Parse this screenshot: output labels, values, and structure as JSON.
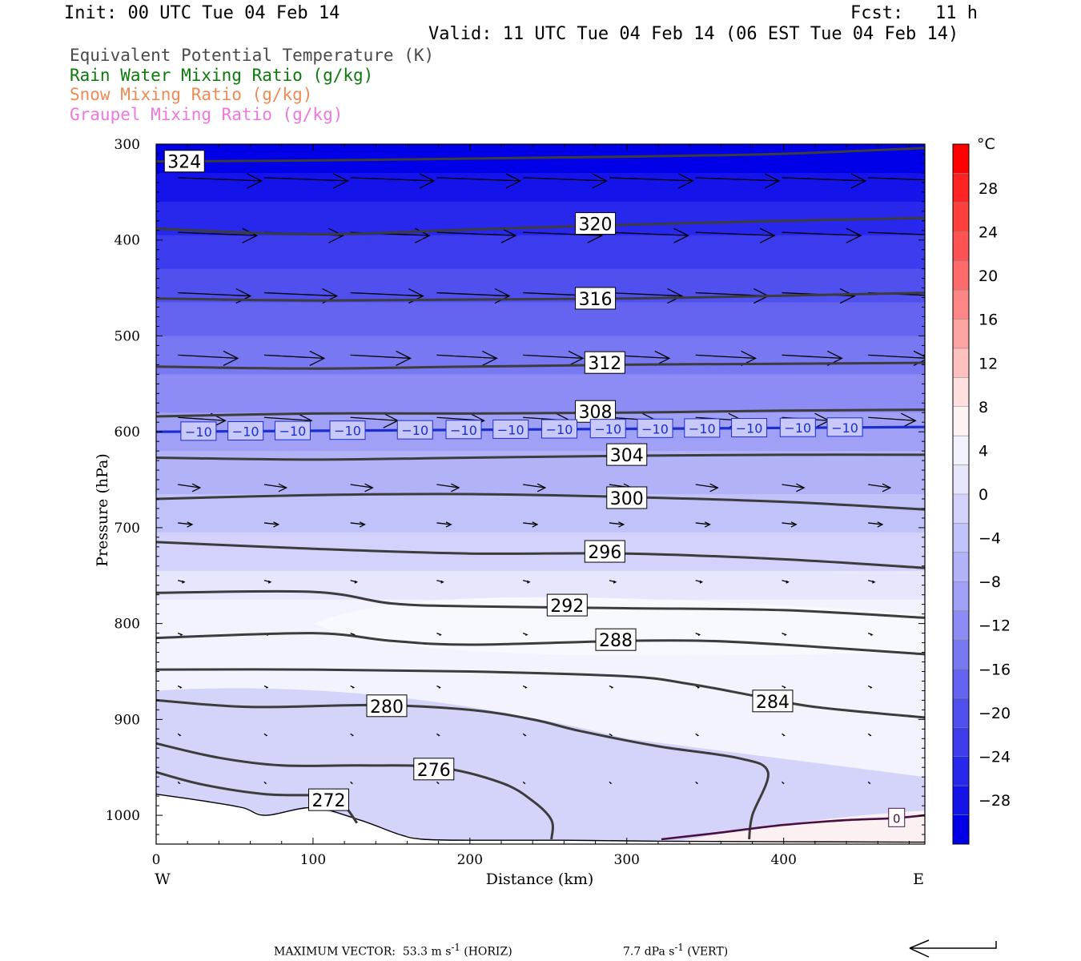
{
  "header": {
    "init": "Init: 00 UTC Tue 04 Feb 14",
    "fcst": "Fcst:   11 h",
    "valid": "Valid: 11 UTC Tue 04 Feb 14 (06 EST Tue 04 Feb 14)"
  },
  "legend": [
    {
      "text": "Equivalent Potential Temperature (K)",
      "color": "#4a4a4a"
    },
    {
      "text": "Rain Water Mixing Ratio (g/kg)",
      "color": "#0b7a0b"
    },
    {
      "text": "Snow Mixing Ratio (g/kg)",
      "color": "#ee8a55"
    },
    {
      "text": "Graupel Mixing Ratio (g/kg)",
      "color": "#ee77dd"
    }
  ],
  "chart_data": {
    "type": "contour",
    "xlabel": "Distance (km)",
    "ylabel": "Pressure (hPa)",
    "xlim": [
      0,
      490
    ],
    "ylim": [
      1030,
      300
    ],
    "x_ticks": [
      0,
      100,
      200,
      300,
      400
    ],
    "y_ticks": [
      300,
      400,
      500,
      600,
      700,
      800,
      900,
      1000
    ],
    "x_end_labels": {
      "left": "W",
      "right": "E"
    },
    "theta_e_contours": [
      {
        "label": "324",
        "pts": [
          [
            0,
            318
          ],
          [
            100,
            317
          ],
          [
            200,
            315
          ],
          [
            300,
            313
          ],
          [
            400,
            310
          ],
          [
            490,
            304
          ]
        ],
        "label_at": [
          18,
          319
        ]
      },
      {
        "label": "320",
        "pts": [
          [
            0,
            388
          ],
          [
            100,
            394
          ],
          [
            200,
            389
          ],
          [
            300,
            384
          ],
          [
            400,
            380
          ],
          [
            490,
            377
          ]
        ],
        "label_at": [
          280,
          384
        ]
      },
      {
        "label": "316",
        "pts": [
          [
            0,
            461
          ],
          [
            100,
            463
          ],
          [
            200,
            462
          ],
          [
            300,
            461
          ],
          [
            400,
            458
          ],
          [
            490,
            455
          ]
        ],
        "label_at": [
          280,
          462
        ]
      },
      {
        "label": "312",
        "pts": [
          [
            0,
            532
          ],
          [
            100,
            534
          ],
          [
            200,
            532
          ],
          [
            300,
            530
          ],
          [
            400,
            529
          ],
          [
            490,
            528
          ]
        ],
        "label_at": [
          286,
          529
        ]
      },
      {
        "label": "308",
        "pts": [
          [
            0,
            584
          ],
          [
            100,
            581
          ],
          [
            200,
            581
          ],
          [
            300,
            580
          ],
          [
            400,
            578
          ],
          [
            490,
            577
          ]
        ],
        "label_at": [
          280,
          580
        ]
      },
      {
        "label": "304",
        "pts": [
          [
            0,
            627
          ],
          [
            100,
            629
          ],
          [
            200,
            627
          ],
          [
            300,
            625
          ],
          [
            400,
            624
          ],
          [
            490,
            624
          ]
        ],
        "label_at": [
          300,
          625
        ]
      },
      {
        "label": "300",
        "pts": [
          [
            0,
            670
          ],
          [
            100,
            666
          ],
          [
            200,
            665
          ],
          [
            300,
            668
          ],
          [
            400,
            673
          ],
          [
            490,
            681
          ]
        ],
        "label_at": [
          300,
          670
        ]
      },
      {
        "label": "296",
        "pts": [
          [
            0,
            715
          ],
          [
            100,
            722
          ],
          [
            200,
            727
          ],
          [
            300,
            727
          ],
          [
            400,
            733
          ],
          [
            490,
            742
          ]
        ],
        "label_at": [
          286,
          726
        ]
      },
      {
        "label": "292",
        "pts": [
          [
            0,
            768
          ],
          [
            100,
            767
          ],
          [
            150,
            779
          ],
          [
            200,
            782
          ],
          [
            300,
            784
          ],
          [
            400,
            786
          ],
          [
            490,
            794
          ]
        ],
        "label_at": [
          262,
          782
        ]
      },
      {
        "label": "288",
        "pts": [
          [
            0,
            815
          ],
          [
            100,
            810
          ],
          [
            150,
            818
          ],
          [
            200,
            822
          ],
          [
            300,
            818
          ],
          [
            350,
            818
          ],
          [
            400,
            822
          ],
          [
            490,
            832
          ]
        ],
        "label_at": [
          293,
          818
        ]
      },
      {
        "label": "284",
        "pts": [
          [
            0,
            848
          ],
          [
            100,
            848
          ],
          [
            200,
            850
          ],
          [
            300,
            855
          ],
          [
            340,
            863
          ],
          [
            380,
            875
          ],
          [
            420,
            887
          ],
          [
            490,
            898
          ]
        ],
        "label_at": [
          393,
          882
        ]
      },
      {
        "label": "280",
        "pts": [
          [
            0,
            880
          ],
          [
            60,
            887
          ],
          [
            140,
            885
          ],
          [
            200,
            890
          ],
          [
            240,
            900
          ],
          [
            270,
            912
          ],
          [
            320,
            928
          ],
          [
            370,
            940
          ],
          [
            390,
            955
          ],
          [
            380,
            1000
          ],
          [
            378,
            1025
          ]
        ],
        "label_at": [
          147,
          887
        ]
      },
      {
        "label": "276",
        "pts": [
          [
            0,
            925
          ],
          [
            40,
            940
          ],
          [
            80,
            948
          ],
          [
            130,
            948
          ],
          [
            180,
            950
          ],
          [
            220,
            966
          ],
          [
            240,
            985
          ],
          [
            252,
            1005
          ],
          [
            252,
            1025
          ]
        ],
        "label_at": [
          177,
          953
        ]
      },
      {
        "label": "272",
        "pts": [
          [
            0,
            955
          ],
          [
            30,
            968
          ],
          [
            70,
            978
          ],
          [
            110,
            980
          ],
          [
            120,
            990
          ],
          [
            128,
            1008
          ]
        ],
        "label_at": [
          110,
          985
        ]
      }
    ],
    "temperature_contours": [
      {
        "label": "-10",
        "color": "#1b2ecf",
        "pts": [
          [
            0,
            600
          ],
          [
            490,
            595
          ]
        ],
        "labels_x": [
          27,
          57,
          87,
          122,
          165,
          196,
          226,
          257,
          288,
          318,
          348,
          378,
          409,
          439
        ]
      },
      {
        "label": "0",
        "color": "#4a1040",
        "pts": [
          [
            322,
            1025
          ],
          [
            360,
            1018
          ],
          [
            400,
            1010
          ],
          [
            440,
            1005
          ],
          [
            470,
            1003
          ],
          [
            490,
            1000
          ]
        ],
        "labels_x": [
          472
        ]
      }
    ],
    "terrain": [
      [
        0,
        978
      ],
      [
        30,
        985
      ],
      [
        55,
        992
      ],
      [
        70,
        1000
      ],
      [
        100,
        992
      ],
      [
        130,
        1005
      ],
      [
        155,
        1020
      ],
      [
        170,
        1025
      ],
      [
        200,
        1026
      ],
      [
        260,
        1026
      ],
      [
        322,
        1027
      ],
      [
        490,
        1028
      ]
    ],
    "colorbar": {
      "unit": "°C",
      "labels": [
        28,
        24,
        20,
        16,
        12,
        8,
        4,
        0,
        -4,
        -8,
        -12,
        -16,
        -20,
        -24,
        -28
      ],
      "colors": [
        "#ff0000",
        "#ff2424",
        "#ff3e3e",
        "#ff5353",
        "#ff6a6a",
        "#ff8686",
        "#ffa2a2",
        "#ffc0c0",
        "#ffe0e0",
        "#fdf3f3",
        "#f3f3fe",
        "#e6e6fd",
        "#d2d2fc",
        "#c2c2fa",
        "#b2b2f8",
        "#a0a0f6",
        "#8c8cf4",
        "#7878f2",
        "#6464f0",
        "#5050ef",
        "#3c3ced",
        "#2828ea",
        "#1414e8",
        "#0000e6"
      ]
    },
    "temperature_bands_y": [
      [
        300,
        "#0000e8"
      ],
      [
        330,
        "#1414ea"
      ],
      [
        360,
        "#2828ec"
      ],
      [
        395,
        "#3c3cee"
      ],
      [
        430,
        "#5050ef"
      ],
      [
        465,
        "#6464f0"
      ],
      [
        500,
        "#7878f2"
      ],
      [
        540,
        "#8c8cf4"
      ],
      [
        580,
        "#a0a0f6"
      ],
      [
        620,
        "#b2b2f8"
      ],
      [
        665,
        "#c2c2fa"
      ],
      [
        705,
        "#d2d2fc"
      ],
      [
        745,
        "#e6e6fd"
      ],
      [
        775,
        "#f3f3fe"
      ]
    ],
    "wind_vectors_row_levels": [
      335,
      392,
      455,
      520,
      585,
      655,
      695,
      755,
      810,
      865,
      915,
      965
    ],
    "wind_vectors_cols_km": [
      20,
      75,
      130,
      185,
      240,
      295,
      350,
      405,
      460
    ],
    "wind_vector_u": [
      53,
      50,
      46,
      38,
      30,
      14,
      9,
      4,
      2.5,
      2,
      1.5,
      1
    ]
  },
  "footer": {
    "max_vector_label": "MAXIMUM VECTOR:",
    "horiz_value": "53.3 m s",
    "horiz_unit": " (HORIZ)",
    "vert_value": "7.7 dPa s",
    "vert_unit": " (VERT)",
    "exp": "-1"
  }
}
